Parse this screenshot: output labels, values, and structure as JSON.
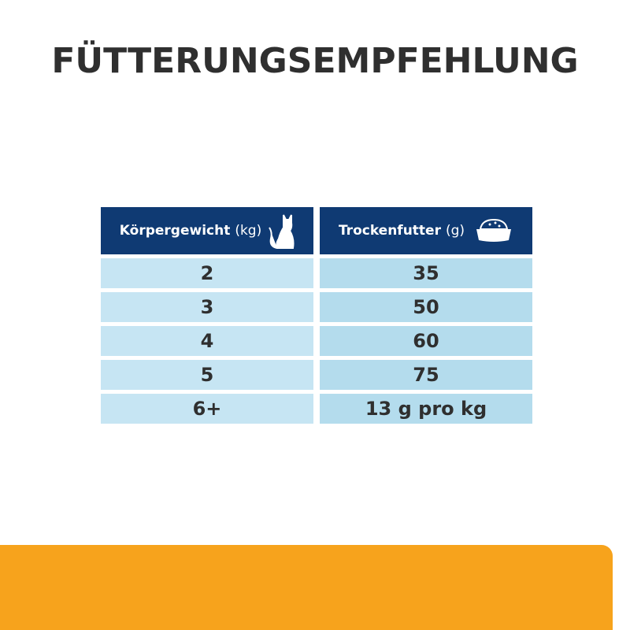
{
  "title": "FÜTTERUNGSEMPFEHLUNG",
  "table": {
    "col1": {
      "label": "Körpergewicht",
      "unit": "(kg)",
      "icon": "cat-icon",
      "values": [
        "2",
        "3",
        "4",
        "5",
        "6+"
      ]
    },
    "col2": {
      "label": "Trockenfutter",
      "unit": "(g)",
      "icon": "food-bowl-icon",
      "values": [
        "35",
        "50",
        "60",
        "75",
        "13 g pro kg"
      ]
    }
  },
  "colors": {
    "header": "#0f3a73",
    "cell_left": "#c6e5f3",
    "cell_right": "#b4dced",
    "accent": "#f7a31c"
  }
}
